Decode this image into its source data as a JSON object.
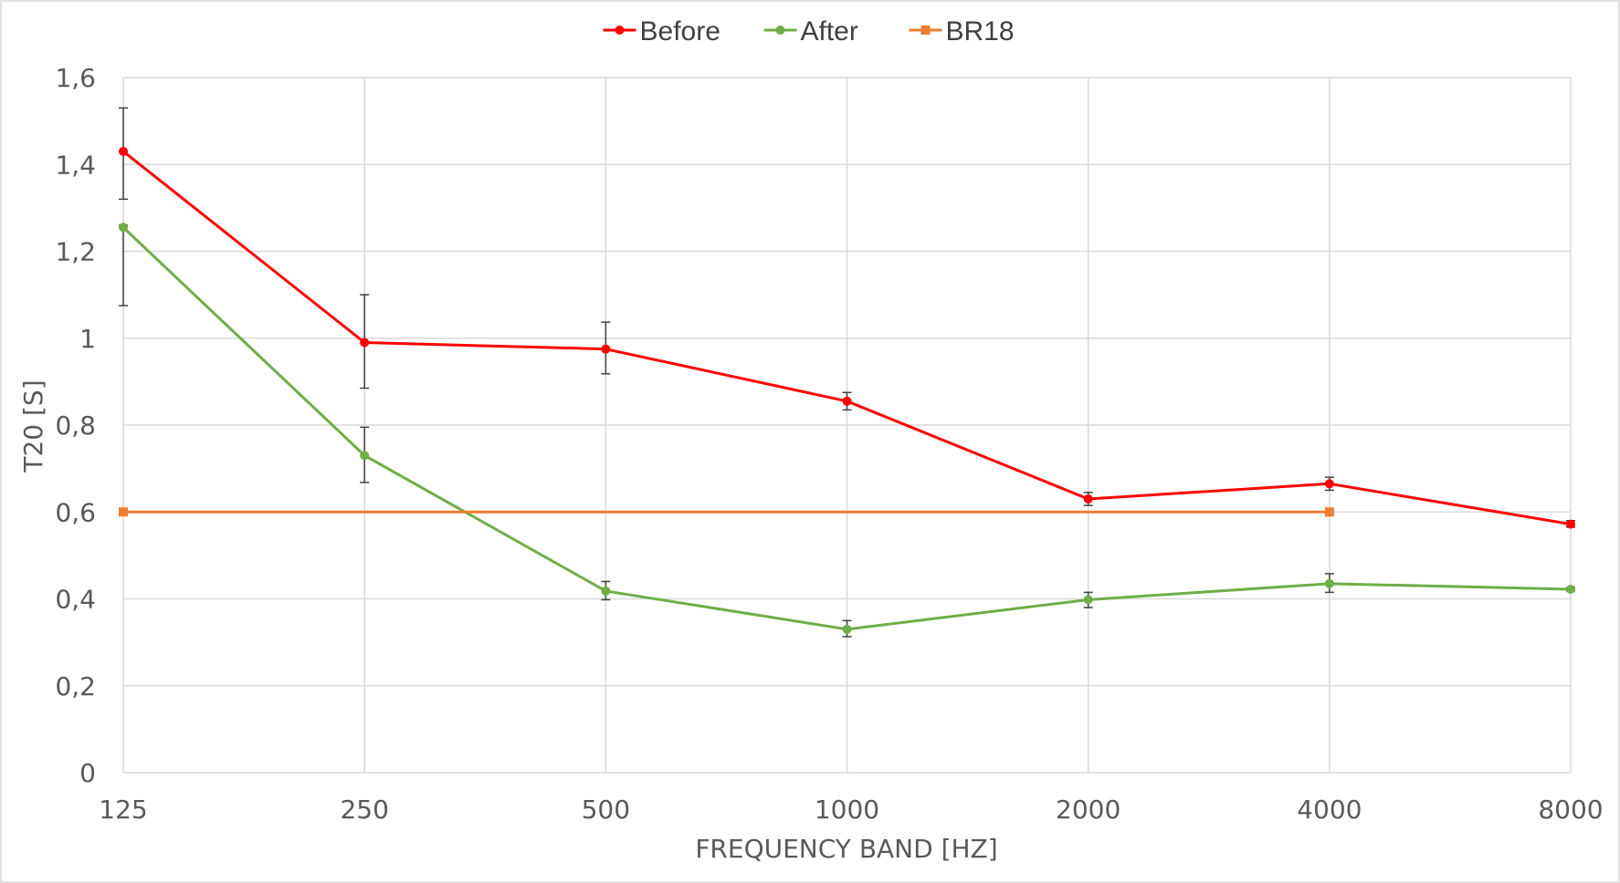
{
  "chart_data": {
    "type": "line",
    "x_axis_type": "category",
    "categories": [
      "125",
      "250",
      "500",
      "1000",
      "2000",
      "4000",
      "8000"
    ],
    "xlabel": "FREQUENCY BAND [HZ]",
    "ylabel": "T20 [S]",
    "ylim": [
      0,
      1.6
    ],
    "y_ticks": [
      "0",
      "0,2",
      "0,4",
      "0,6",
      "0,8",
      "1",
      "1,2",
      "1,4",
      "1,6"
    ],
    "grid": true,
    "legend_position": "top-center",
    "series": [
      {
        "name": "Before",
        "color": "#ff0000",
        "marker": "circle",
        "values": [
          1.43,
          0.99,
          0.975,
          0.855,
          0.63,
          0.665,
          0.572
        ],
        "err_low": [
          1.32,
          0.885,
          0.918,
          0.835,
          0.615,
          0.65,
          0.565
        ],
        "err_high": [
          1.53,
          1.1,
          1.037,
          0.875,
          0.645,
          0.68,
          0.58
        ]
      },
      {
        "name": "After",
        "color": "#70ad47",
        "marker": "circle",
        "values": [
          1.255,
          0.73,
          0.418,
          0.33,
          0.398,
          0.435,
          0.422
        ],
        "err_low": [
          1.075,
          0.668,
          0.398,
          0.313,
          0.38,
          0.415,
          0.418
        ],
        "err_high": [
          1.26,
          0.795,
          0.44,
          0.35,
          0.415,
          0.458,
          0.426
        ]
      },
      {
        "name": "BR18",
        "color": "#ed7d31",
        "marker": "square",
        "values": [
          0.6,
          null,
          null,
          null,
          null,
          0.6,
          null
        ]
      }
    ]
  }
}
